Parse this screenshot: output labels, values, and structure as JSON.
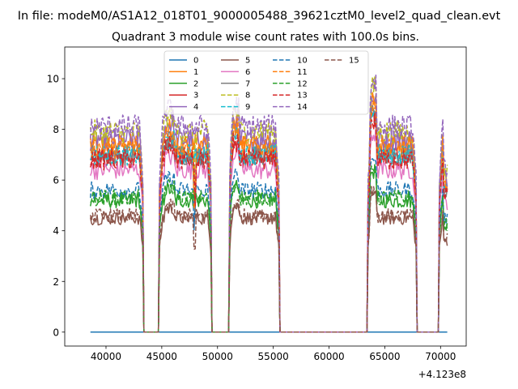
{
  "figure": {
    "suptitle": "In file: modeM0/AS1A12_018T01_9000005488_39621cztM0_level2_quad_clean.evt",
    "title": "Quadrant 3 module wise count rates with 100.0s bins.",
    "offset_label": "+4.123e8"
  },
  "chart_data": {
    "type": "line",
    "title": "Quadrant 3 module wise count rates with 100.0s bins.",
    "xlabel": "",
    "ylabel": "",
    "x_offset": 412300000,
    "xlim": [
      36300,
      72300
    ],
    "ylim": [
      -0.55,
      11.25
    ],
    "xticks": [
      40000,
      45000,
      50000,
      55000,
      60000,
      65000,
      70000
    ],
    "yticks": [
      0,
      2,
      4,
      6,
      8,
      10
    ],
    "grid": false,
    "legend_position": "top-center",
    "legend_columns": 4,
    "time_range": [
      38600,
      70600
    ],
    "gaps": [
      [
        43300,
        44800
      ],
      [
        49400,
        51100
      ],
      [
        55500,
        63500
      ],
      [
        67800,
        69900
      ]
    ],
    "series": [
      {
        "name": "0",
        "color": "#1f77b4",
        "style": "solid",
        "level": 0.0
      },
      {
        "name": "1",
        "color": "#ff7f0e",
        "style": "solid",
        "level": 7.4
      },
      {
        "name": "2",
        "color": "#2ca02c",
        "style": "solid",
        "level": 5.2
      },
      {
        "name": "3",
        "color": "#d62728",
        "style": "solid",
        "level": 6.9
      },
      {
        "name": "4",
        "color": "#9467bd",
        "style": "solid",
        "level": 7.6
      },
      {
        "name": "5",
        "color": "#8c564b",
        "style": "solid",
        "level": 4.5
      },
      {
        "name": "6",
        "color": "#e377c2",
        "style": "solid",
        "level": 6.4
      },
      {
        "name": "7",
        "color": "#7f7f7f",
        "style": "solid",
        "level": 7.0
      },
      {
        "name": "8",
        "color": "#bcbd22",
        "style": "dashed",
        "level": 7.9
      },
      {
        "name": "9",
        "color": "#17becf",
        "style": "dashed",
        "level": 7.0
      },
      {
        "name": "10",
        "color": "#1f77b4",
        "style": "dashed",
        "level": 5.6
      },
      {
        "name": "11",
        "color": "#ff7f0e",
        "style": "dashed",
        "level": 7.3
      },
      {
        "name": "12",
        "color": "#2ca02c",
        "style": "dashed",
        "level": 5.3
      },
      {
        "name": "13",
        "color": "#d62728",
        "style": "dashed",
        "level": 6.8
      },
      {
        "name": "14",
        "color": "#9467bd",
        "style": "dashed",
        "level": 8.1
      },
      {
        "name": "15",
        "color": "#8c564b",
        "style": "dashed",
        "level": 4.6
      }
    ]
  }
}
